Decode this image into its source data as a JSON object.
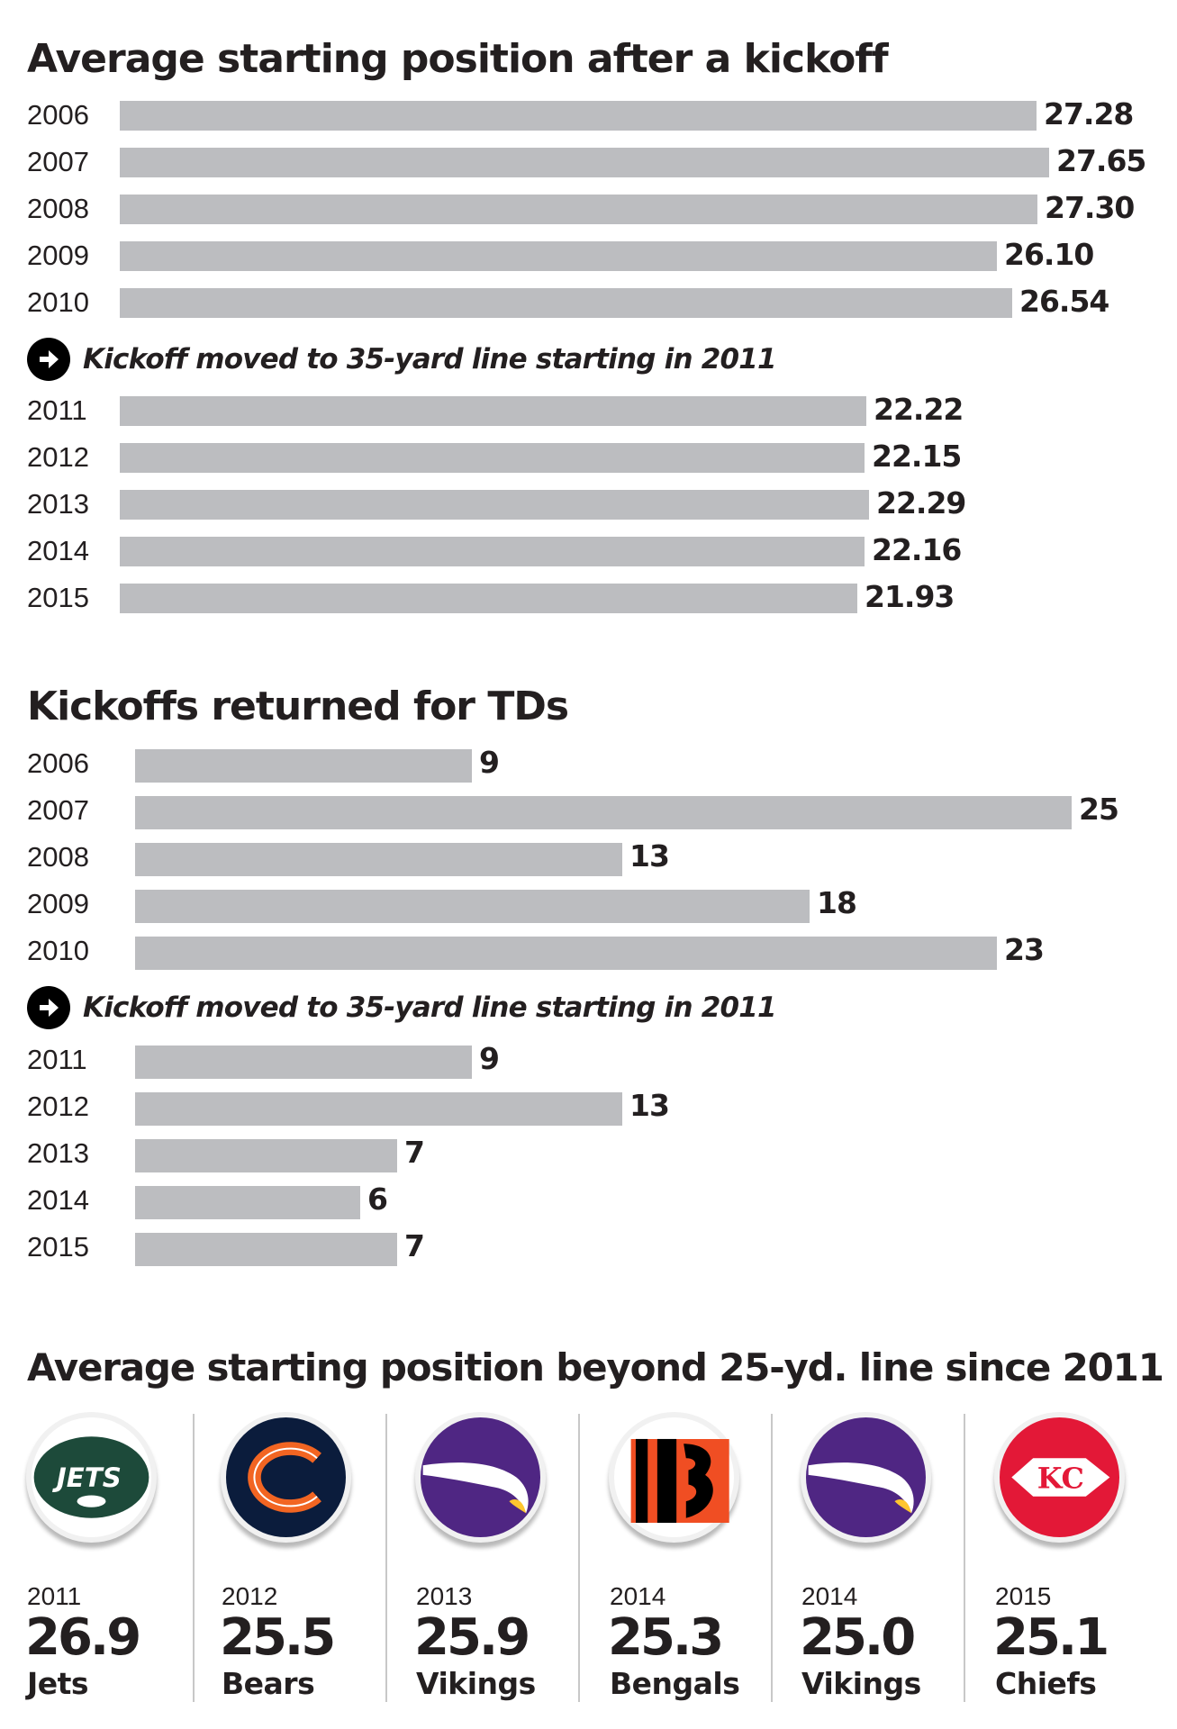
{
  "chart_data": [
    {
      "type": "bar",
      "orientation": "horizontal",
      "title": "Average starting position after a kickoff",
      "annotation": "Kickoff moved to 35-yard line starting in 2011",
      "categories": [
        "2006",
        "2007",
        "2008",
        "2009",
        "2010",
        "2011",
        "2012",
        "2013",
        "2014",
        "2015"
      ],
      "values": [
        27.28,
        27.65,
        27.3,
        26.1,
        26.54,
        22.22,
        22.15,
        22.29,
        22.16,
        21.93
      ],
      "value_labels": [
        "27.28",
        "27.65",
        "27.30",
        "26.10",
        "26.54",
        "22.22",
        "22.15",
        "22.29",
        "22.16",
        "21.93"
      ],
      "xlim": [
        0,
        27.65
      ],
      "grid": false,
      "bar_color": "#bcbdc0"
    },
    {
      "type": "bar",
      "orientation": "horizontal",
      "title": "Kickoffs returned for TDs",
      "annotation": "Kickoff moved to 35-yard line starting in 2011",
      "categories": [
        "2006",
        "2007",
        "2008",
        "2009",
        "2010",
        "2011",
        "2012",
        "2013",
        "2014",
        "2015"
      ],
      "values": [
        9,
        25,
        13,
        18,
        23,
        9,
        13,
        7,
        6,
        7
      ],
      "value_labels": [
        "9",
        "25",
        "13",
        "18",
        "23",
        "9",
        "13",
        "7",
        "6",
        "7"
      ],
      "xlim": [
        0,
        25
      ],
      "grid": false,
      "bar_color": "#bcbdc0"
    }
  ],
  "teams_section": {
    "title": "Average starting position beyond 25-yd. line since 2011",
    "teams": [
      {
        "year": "2011",
        "value": "26.9",
        "name": "Jets",
        "logo": "jets-logo",
        "logo_text": "JETS",
        "color": "#1d4a3a"
      },
      {
        "year": "2012",
        "value": "25.5",
        "name": "Bears",
        "logo": "bears-logo",
        "color": "#0b1c3c"
      },
      {
        "year": "2013",
        "value": "25.9",
        "name": "Vikings",
        "logo": "vikings-logo",
        "color": "#4f2683"
      },
      {
        "year": "2014",
        "value": "25.3",
        "name": "Bengals",
        "logo": "bengals-logo",
        "color": "#f04e23"
      },
      {
        "year": "2014",
        "value": "25.0",
        "name": "Vikings",
        "logo": "vikings-logo",
        "color": "#4f2683"
      },
      {
        "year": "2015",
        "value": "25.1",
        "name": "Chiefs",
        "logo": "chiefs-logo",
        "logo_text": "KC",
        "color": "#e31837"
      }
    ]
  }
}
